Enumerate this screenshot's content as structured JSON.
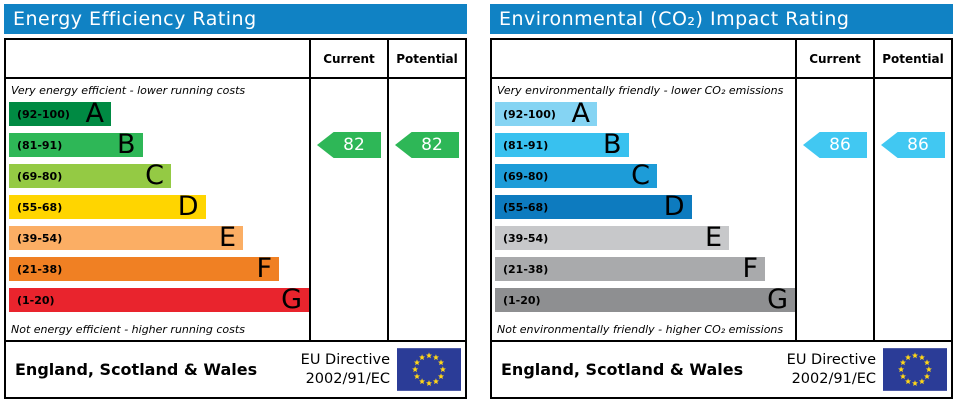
{
  "colors": {
    "header_bar": "#1082c4",
    "border": "#000000",
    "flag_blue": "#2b3c97",
    "star_yellow": "#ffd617",
    "arrow_text": "#ffffff"
  },
  "panels": [
    {
      "title": "Energy Efficiency Rating",
      "columns": {
        "current": "Current",
        "potential": "Potential"
      },
      "top_caption": "Very energy efficient - lower running costs",
      "bottom_caption": "Not energy efficient - higher running costs",
      "bands": [
        {
          "range": "(92-100)",
          "letter": "A",
          "min": 92,
          "max": 100,
          "color": "#008a43",
          "width_pct": 34
        },
        {
          "range": "(81-91)",
          "letter": "B",
          "min": 81,
          "max": 91,
          "color": "#2eb757",
          "width_pct": 44.5
        },
        {
          "range": "(69-80)",
          "letter": "C",
          "min": 69,
          "max": 80,
          "color": "#94ca44",
          "width_pct": 54
        },
        {
          "range": "(55-68)",
          "letter": "D",
          "min": 55,
          "max": 68,
          "color": "#ffd500",
          "width_pct": 65.5
        },
        {
          "range": "(39-54)",
          "letter": "E",
          "min": 39,
          "max": 54,
          "color": "#fbae64",
          "width_pct": 78
        },
        {
          "range": "(21-38)",
          "letter": "F",
          "min": 21,
          "max": 38,
          "color": "#f08023",
          "width_pct": 90
        },
        {
          "range": "(1-20)",
          "letter": "G",
          "min": 1,
          "max": 20,
          "color": "#e9242d",
          "width_pct": 100
        }
      ],
      "current": 82,
      "potential": 82,
      "arrow_color": "#2eb757",
      "footer": {
        "region": "England, Scotland & Wales",
        "directive_line1": "EU Directive",
        "directive_line2": "2002/91/EC"
      }
    },
    {
      "title": "Environmental (CO₂) Impact Rating",
      "columns": {
        "current": "Current",
        "potential": "Potential"
      },
      "top_caption": "Very environmentally friendly - lower CO₂ emissions",
      "bottom_caption": "Not environmentally friendly - higher CO₂ emissions",
      "bands": [
        {
          "range": "(92-100)",
          "letter": "A",
          "min": 92,
          "max": 100,
          "color": "#85d4f3",
          "width_pct": 34
        },
        {
          "range": "(81-91)",
          "letter": "B",
          "min": 81,
          "max": 91,
          "color": "#38c1ef",
          "width_pct": 44.5
        },
        {
          "range": "(69-80)",
          "letter": "C",
          "min": 69,
          "max": 80,
          "color": "#1d9cd8",
          "width_pct": 54
        },
        {
          "range": "(55-68)",
          "letter": "D",
          "min": 55,
          "max": 68,
          "color": "#0d7bbf",
          "width_pct": 65.5
        },
        {
          "range": "(39-54)",
          "letter": "E",
          "min": 39,
          "max": 54,
          "color": "#c7c8ca",
          "width_pct": 78
        },
        {
          "range": "(21-38)",
          "letter": "F",
          "min": 21,
          "max": 38,
          "color": "#a9aaac",
          "width_pct": 90
        },
        {
          "range": "(1-20)",
          "letter": "G",
          "min": 1,
          "max": 20,
          "color": "#8e8f91",
          "width_pct": 100
        }
      ],
      "current": 86,
      "potential": 86,
      "arrow_color": "#41c8f2",
      "footer": {
        "region": "England, Scotland & Wales",
        "directive_line1": "EU Directive",
        "directive_line2": "2002/91/EC"
      }
    }
  ],
  "chart_data": [
    {
      "type": "bar",
      "title": "Energy Efficiency Rating",
      "categories": [
        "A",
        "B",
        "C",
        "D",
        "E",
        "F",
        "G"
      ],
      "band_ranges": [
        "92-100",
        "81-91",
        "69-80",
        "55-68",
        "39-54",
        "21-38",
        "1-20"
      ],
      "band_widths_pct": [
        34,
        44.5,
        54,
        65.5,
        78,
        90,
        100
      ],
      "current": 82,
      "current_band": "B",
      "potential": 82,
      "potential_band": "B",
      "top_note": "Very energy efficient - lower running costs",
      "bottom_note": "Not energy efficient - higher running costs",
      "legend_position": "none",
      "footer": "England, Scotland & Wales — EU Directive 2002/91/EC"
    },
    {
      "type": "bar",
      "title": "Environmental (CO₂) Impact Rating",
      "categories": [
        "A",
        "B",
        "C",
        "D",
        "E",
        "F",
        "G"
      ],
      "band_ranges": [
        "92-100",
        "81-91",
        "69-80",
        "55-68",
        "39-54",
        "21-38",
        "1-20"
      ],
      "band_widths_pct": [
        34,
        44.5,
        54,
        65.5,
        78,
        90,
        100
      ],
      "current": 86,
      "current_band": "B",
      "potential": 86,
      "potential_band": "B",
      "top_note": "Very environmentally friendly - lower CO₂ emissions",
      "bottom_note": "Not environmentally friendly - higher CO₂ emissions",
      "legend_position": "none",
      "footer": "England, Scotland & Wales — EU Directive 2002/91/EC"
    }
  ]
}
